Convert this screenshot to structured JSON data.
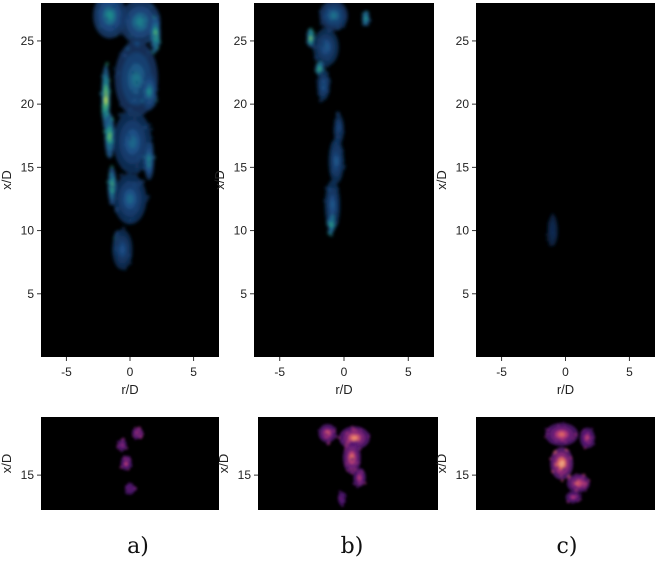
{
  "chart_data": [
    {
      "type": "heatmap",
      "panel": "a)",
      "colormap": "viridis",
      "xlabel": "r/D",
      "ylabel": "x/D",
      "xlim": [
        -7,
        7
      ],
      "ylim": [
        0,
        28
      ],
      "xticks": [
        -5,
        0,
        5
      ],
      "yticks": [
        5,
        10,
        15,
        20,
        25
      ],
      "background": "#000000",
      "blobs": [
        {
          "r": -1.6,
          "x": 27.0,
          "sr": 1.3,
          "sx": 1.8,
          "v": 0.55
        },
        {
          "r": 0.8,
          "x": 26.5,
          "sr": 1.6,
          "sx": 1.8,
          "v": 0.5
        },
        {
          "r": 2.0,
          "x": 25.5,
          "sr": 0.4,
          "sx": 1.4,
          "v": 0.85
        },
        {
          "r": -1.9,
          "x": 20.5,
          "sr": 0.35,
          "sx": 2.6,
          "v": 1.0
        },
        {
          "r": -1.6,
          "x": 17.5,
          "sr": 0.4,
          "sx": 1.8,
          "v": 0.85
        },
        {
          "r": 0.5,
          "x": 22.0,
          "sr": 1.7,
          "sx": 3.0,
          "v": 0.45
        },
        {
          "r": 1.5,
          "x": 21.0,
          "sr": 0.6,
          "sx": 1.5,
          "v": 0.55
        },
        {
          "r": 0.2,
          "x": 17.0,
          "sr": 1.5,
          "sx": 2.5,
          "v": 0.4
        },
        {
          "r": 1.5,
          "x": 15.5,
          "sr": 0.4,
          "sx": 1.5,
          "v": 0.6
        },
        {
          "r": -1.4,
          "x": 13.5,
          "sr": 0.35,
          "sx": 1.5,
          "v": 0.8
        },
        {
          "r": 0.0,
          "x": 12.5,
          "sr": 1.3,
          "sx": 2.0,
          "v": 0.4
        },
        {
          "r": -1.0,
          "x": 9.0,
          "sr": 0.3,
          "sx": 1.0,
          "v": 0.85
        },
        {
          "r": -0.6,
          "x": 8.5,
          "sr": 0.8,
          "sx": 1.6,
          "v": 0.3
        }
      ]
    },
    {
      "type": "heatmap",
      "panel": "b)",
      "colormap": "viridis",
      "xlabel": "r/D",
      "ylabel": "x/D",
      "xlim": [
        -7,
        7
      ],
      "ylim": [
        0,
        28
      ],
      "xticks": [
        -5,
        0,
        5
      ],
      "yticks": [
        5,
        10,
        15,
        20,
        25
      ],
      "background": "#000000",
      "blobs": [
        {
          "r": -0.8,
          "x": 27.0,
          "sr": 1.1,
          "sx": 1.2,
          "v": 0.45
        },
        {
          "r": 1.7,
          "x": 26.8,
          "sr": 0.3,
          "sx": 0.6,
          "v": 0.7
        },
        {
          "r": -2.6,
          "x": 25.2,
          "sr": 0.3,
          "sx": 0.7,
          "v": 0.9
        },
        {
          "r": -1.4,
          "x": 24.5,
          "sr": 1.0,
          "sx": 1.5,
          "v": 0.35
        },
        {
          "r": -1.9,
          "x": 22.8,
          "sr": 0.35,
          "sx": 0.5,
          "v": 0.8
        },
        {
          "r": -1.6,
          "x": 21.5,
          "sr": 0.5,
          "sx": 1.2,
          "v": 0.35
        },
        {
          "r": -0.4,
          "x": 18.0,
          "sr": 0.4,
          "sx": 1.2,
          "v": 0.3
        },
        {
          "r": -0.6,
          "x": 15.5,
          "sr": 0.6,
          "sx": 1.8,
          "v": 0.35
        },
        {
          "r": -0.9,
          "x": 12.0,
          "sr": 0.6,
          "sx": 2.0,
          "v": 0.35
        },
        {
          "r": -1.0,
          "x": 10.5,
          "sr": 0.25,
          "sx": 0.8,
          "v": 0.75
        }
      ]
    },
    {
      "type": "heatmap",
      "panel": "c)",
      "colormap": "viridis",
      "xlabel": "r/D",
      "ylabel": "x/D",
      "xlim": [
        -7,
        7
      ],
      "ylim": [
        0,
        28
      ],
      "xticks": [
        -5,
        0,
        5
      ],
      "yticks": [
        5,
        10,
        15,
        20,
        25
      ],
      "background": "#000000",
      "blobs": [
        {
          "r": -1.0,
          "x": 10.0,
          "sr": 0.4,
          "sx": 1.2,
          "v": 0.12
        }
      ]
    },
    {
      "type": "heatmap",
      "panel": "a)",
      "colormap": "magma",
      "ylabel": "x/D",
      "yticks": [
        15
      ],
      "ylim": [
        12,
        20
      ],
      "xlim": [
        -7,
        7
      ],
      "background": "#000000",
      "blobs": [
        {
          "r": 0.6,
          "x": 18.6,
          "sr": 0.45,
          "sx": 0.5,
          "v": 0.65
        },
        {
          "r": -0.6,
          "x": 17.6,
          "sr": 0.35,
          "sx": 0.5,
          "v": 0.55
        },
        {
          "r": -0.3,
          "x": 16.0,
          "sr": 0.45,
          "sx": 0.6,
          "v": 0.6
        },
        {
          "r": 0.0,
          "x": 13.8,
          "sr": 0.4,
          "sx": 0.5,
          "v": 0.5
        }
      ]
    },
    {
      "type": "heatmap",
      "panel": "b)",
      "colormap": "magma",
      "ylabel": "x/D",
      "yticks": [
        15
      ],
      "ylim": [
        12,
        20
      ],
      "xlim": [
        -7,
        7
      ],
      "background": "#000000",
      "blobs": [
        {
          "r": -1.6,
          "x": 18.6,
          "sr": 0.7,
          "sx": 0.8,
          "v": 0.7
        },
        {
          "r": 0.5,
          "x": 18.2,
          "sr": 1.2,
          "sx": 1.0,
          "v": 0.8
        },
        {
          "r": 0.3,
          "x": 16.5,
          "sr": 0.7,
          "sx": 1.4,
          "v": 0.75
        },
        {
          "r": 0.9,
          "x": 14.8,
          "sr": 0.5,
          "sx": 0.8,
          "v": 0.6
        },
        {
          "r": -0.5,
          "x": 13.0,
          "sr": 0.3,
          "sx": 0.6,
          "v": 0.45
        }
      ]
    },
    {
      "type": "heatmap",
      "panel": "c)",
      "colormap": "magma",
      "ylabel": "x/D",
      "yticks": [
        15
      ],
      "ylim": [
        12,
        20
      ],
      "xlim": [
        -7,
        7
      ],
      "background": "#000000",
      "blobs": [
        {
          "r": -0.3,
          "x": 18.5,
          "sr": 1.3,
          "sx": 1.0,
          "v": 0.7
        },
        {
          "r": 1.7,
          "x": 18.2,
          "sr": 0.6,
          "sx": 0.9,
          "v": 0.6
        },
        {
          "r": -0.3,
          "x": 16.0,
          "sr": 0.9,
          "sx": 1.4,
          "v": 0.9
        },
        {
          "r": 1.0,
          "x": 14.3,
          "sr": 0.9,
          "sx": 0.8,
          "v": 0.75
        },
        {
          "r": 0.6,
          "x": 13.1,
          "sr": 0.6,
          "sx": 0.5,
          "v": 0.55
        }
      ]
    }
  ],
  "panel_labels": [
    "a)",
    "b)",
    "c)"
  ]
}
